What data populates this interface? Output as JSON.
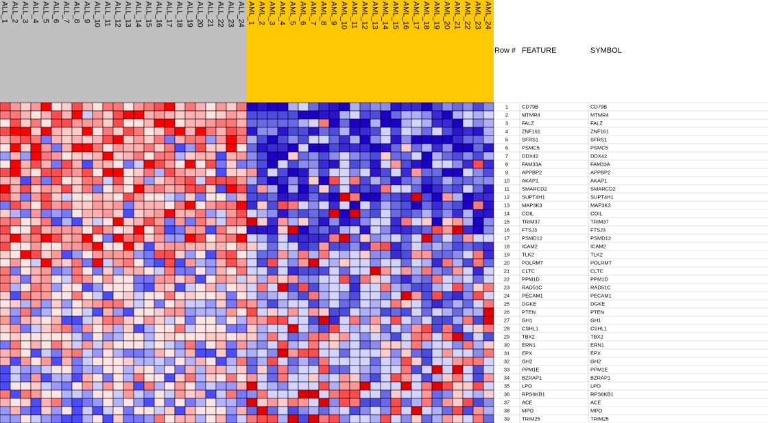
{
  "header": {
    "row_num": "Row #",
    "feature": "FEATURE",
    "symbol": "SYMBOL"
  },
  "chart_data": {
    "type": "heatmap",
    "title": "",
    "colors": {
      "low": "#1c00c8",
      "mid": "#ffffff",
      "high": "#ff0000",
      "group_all": "#c0c0c0",
      "group_aml": "#ffc800",
      "grid": "#000000"
    },
    "groups": [
      {
        "name": "ALL",
        "color": "#c0c0c0",
        "columns": [
          "ALL_1",
          "ALL_2",
          "ALL_3",
          "ALL_4",
          "ALL_5",
          "ALL_6",
          "ALL_7",
          "ALL_8",
          "ALL_9",
          "ALL_10",
          "ALL_11",
          "ALL_12",
          "ALL_13",
          "ALL_14",
          "ALL_15",
          "ALL_16",
          "ALL_17",
          "ALL_18",
          "ALL_19",
          "ALL_20",
          "ALL_21",
          "ALL_22",
          "ALL_23",
          "ALL_24"
        ]
      },
      {
        "name": "AML",
        "color": "#ffc800",
        "columns": [
          "AML_1",
          "AML_2",
          "AML_3",
          "AML_4",
          "AML_5",
          "AML_6",
          "AML_7",
          "AML_8",
          "AML_9",
          "AML_10",
          "AML_11",
          "AML_12",
          "AML_13",
          "AML_14",
          "AML_15",
          "AML_16",
          "AML_17",
          "AML_18",
          "AML_19",
          "AML_20",
          "AML_21",
          "AML_22",
          "AML_23",
          "AML_24"
        ]
      }
    ],
    "rows": [
      {
        "n": "1",
        "feature": "CD79B",
        "symbol": "CD79B"
      },
      {
        "n": "2",
        "feature": "MTMR4",
        "symbol": "MTMR4"
      },
      {
        "n": "3",
        "feature": "FALZ",
        "symbol": "FALZ"
      },
      {
        "n": "4",
        "feature": "ZNF161",
        "symbol": "ZNF161"
      },
      {
        "n": "5",
        "feature": "SFRS1",
        "symbol": "SFRS1"
      },
      {
        "n": "6",
        "feature": "PSMC5",
        "symbol": "PSMC5"
      },
      {
        "n": "7",
        "feature": "DDX42",
        "symbol": "DDX42"
      },
      {
        "n": "8",
        "feature": "FAM33A",
        "symbol": "FAM33A"
      },
      {
        "n": "9",
        "feature": "APPBP2",
        "symbol": "APPBP2"
      },
      {
        "n": "10",
        "feature": "AKAP1",
        "symbol": "AKAP1"
      },
      {
        "n": "11",
        "feature": "SMARCD2",
        "symbol": "SMARCD2"
      },
      {
        "n": "12",
        "feature": "SUPT4H1",
        "symbol": "SUPT4H1"
      },
      {
        "n": "13",
        "feature": "MAP3K3",
        "symbol": "MAP3K3"
      },
      {
        "n": "14",
        "feature": "COIL",
        "symbol": "COIL"
      },
      {
        "n": "15",
        "feature": "TRIM37",
        "symbol": "TRIM37"
      },
      {
        "n": "16",
        "feature": "FTSJ3",
        "symbol": "FTSJ3"
      },
      {
        "n": "17",
        "feature": "PSMD12",
        "symbol": "PSMD12"
      },
      {
        "n": "18",
        "feature": "ICAM2",
        "symbol": "ICAM2"
      },
      {
        "n": "19",
        "feature": "TLK2",
        "symbol": "TLK2"
      },
      {
        "n": "20",
        "feature": "POLRMT",
        "symbol": "POLRMT"
      },
      {
        "n": "21",
        "feature": "CLTC",
        "symbol": "CLTC"
      },
      {
        "n": "22",
        "feature": "PPM1D",
        "symbol": "PPM1D"
      },
      {
        "n": "23",
        "feature": "RAD51C",
        "symbol": "RAD51C"
      },
      {
        "n": "24",
        "feature": "PECAM1",
        "symbol": "PECAM1"
      },
      {
        "n": "25",
        "feature": "DGKE",
        "symbol": "DGKE"
      },
      {
        "n": "26",
        "feature": "PTEN",
        "symbol": "PTEN"
      },
      {
        "n": "27",
        "feature": "GH1",
        "symbol": "GH1"
      },
      {
        "n": "28",
        "feature": "CSHL1",
        "symbol": "CSHL1"
      },
      {
        "n": "29",
        "feature": "TBX2",
        "symbol": "TBX2"
      },
      {
        "n": "30",
        "feature": "ERN1",
        "symbol": "ERN1"
      },
      {
        "n": "31",
        "feature": "EPX",
        "symbol": "EPX"
      },
      {
        "n": "32",
        "feature": "GH2",
        "symbol": "GH2"
      },
      {
        "n": "33",
        "feature": "PPM1E",
        "symbol": "PPM1E"
      },
      {
        "n": "34",
        "feature": "BZRAP1",
        "symbol": "BZRAP1"
      },
      {
        "n": "35",
        "feature": "LPO",
        "symbol": "LPO"
      },
      {
        "n": "36",
        "feature": "RPS6KB1",
        "symbol": "RPS6KB1"
      },
      {
        "n": "37",
        "feature": "ACE",
        "symbol": "ACE"
      },
      {
        "n": "38",
        "feature": "MPO",
        "symbol": "MPO"
      },
      {
        "n": "39",
        "feature": "TRIM25",
        "symbol": "TRIM25"
      }
    ],
    "levels": [
      "dbdbbbbbcbdcbcbcbcbcbcbd",
      "cbcbcbccbcbcbcbcbbbcbbbc",
      "bbcccbcbbdbcbcbcbbccbcbc",
      "cdcbbcbcbcbccbbbcbcbcbcc",
      "bdbcbccbccbccdbcdbcbcbbc",
      "bdbbcbcbcbbbdbcbbcbbbcbb",
      "cbbccbbcdcdbbbccbbcdbccb",
      "bccbdbccbbbbbbbbcbbcbbbc",
      "bbccbbbbcbbcdbbbbbcbbbbb",
      "cbccbcbbbbbbbbcbcbbbbbbc",
      "bbbbcbbbcbcbbbcbccbbcbbc",
      "bcbbbcbbbbbccbbbbcbbcbbb",
      "cbbbbcbbbbbbcbbbcbbbbbbb",
      "bccbbbcbbbccbbbbbbbbbbbc",
      "bbbbbbbbbcbcbbbbbbbbbbcb",
      "bcbcbcbbbbbcbbbcbbbbbcbb",
      "cbbbcbbbbcbbbbbcbcbbbbbb",
      "bcbbbbbbcbbbbbbbbbbbbcbb",
      "bbbbcbbbbbcbbbcbcbbbbbbb",
      "bbcbbbbbbbbbbbbbbbbbcbbb",
      "bbbbbbbbbbbbbbbbbbcbbbbb",
      "bbbbbbbbbbbbcbcbcbbbbbbb",
      "cbbcbbbbbbbbbbbbbbbbbbbb",
      "bbbbbbbbbbbbbbbbbbbbbbbb",
      "bbbbbbbbbbbbbbbbbbbbbbbb",
      "bbbbbbbbbbbbbbbbbbbbbbbb",
      "bbbbbbbbbbbbbbbbbbbbbbbb",
      "bbbbbbbbbbbbbbbbbbbbbbbb",
      "bbbbbbbbbbbbbbbbbbbbbbbb",
      "bbbbbbbbbbbbbbbbbbbbbbbb",
      "bbbbbbbbbbbbbbbbbbbbbbbb",
      "bbbbbbbbbbbbbbbbbbbbbbbb",
      "bbbbbbbbbbbbbbbbbbbbbbbb",
      "bbbbbbbbbbbbbbbbbbbbbbbb",
      "bbbbbbbbbbbbbbbbbbbbbbbb",
      "bbbbbbbbbbbbbbbbbbbbbbbb",
      "bbbbbbbbbbbbbbbbbbbbbbbb",
      "bbbbbbbbbbbbbbbbbbbbbbbb",
      "bbbbbbbbbbbbbbbbbbbbbbbb"
    ],
    "levels_note": ""
  }
}
